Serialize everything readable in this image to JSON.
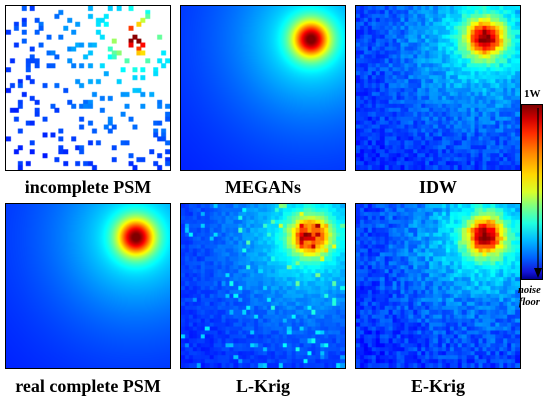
{
  "panels": [
    {
      "key": "incomplete",
      "caption": "incomplete PSM"
    },
    {
      "key": "megans",
      "caption": "MEGANs"
    },
    {
      "key": "idw",
      "caption": "IDW"
    },
    {
      "key": "real",
      "caption": "real complete PSM"
    },
    {
      "key": "lkrig",
      "caption": "L-Krig"
    },
    {
      "key": "ekrig",
      "caption": "E-Krig"
    }
  ],
  "colorbar": {
    "top_label": "1W",
    "bottom_label_line1": "noise",
    "bottom_label_line2": "floor"
  }
}
